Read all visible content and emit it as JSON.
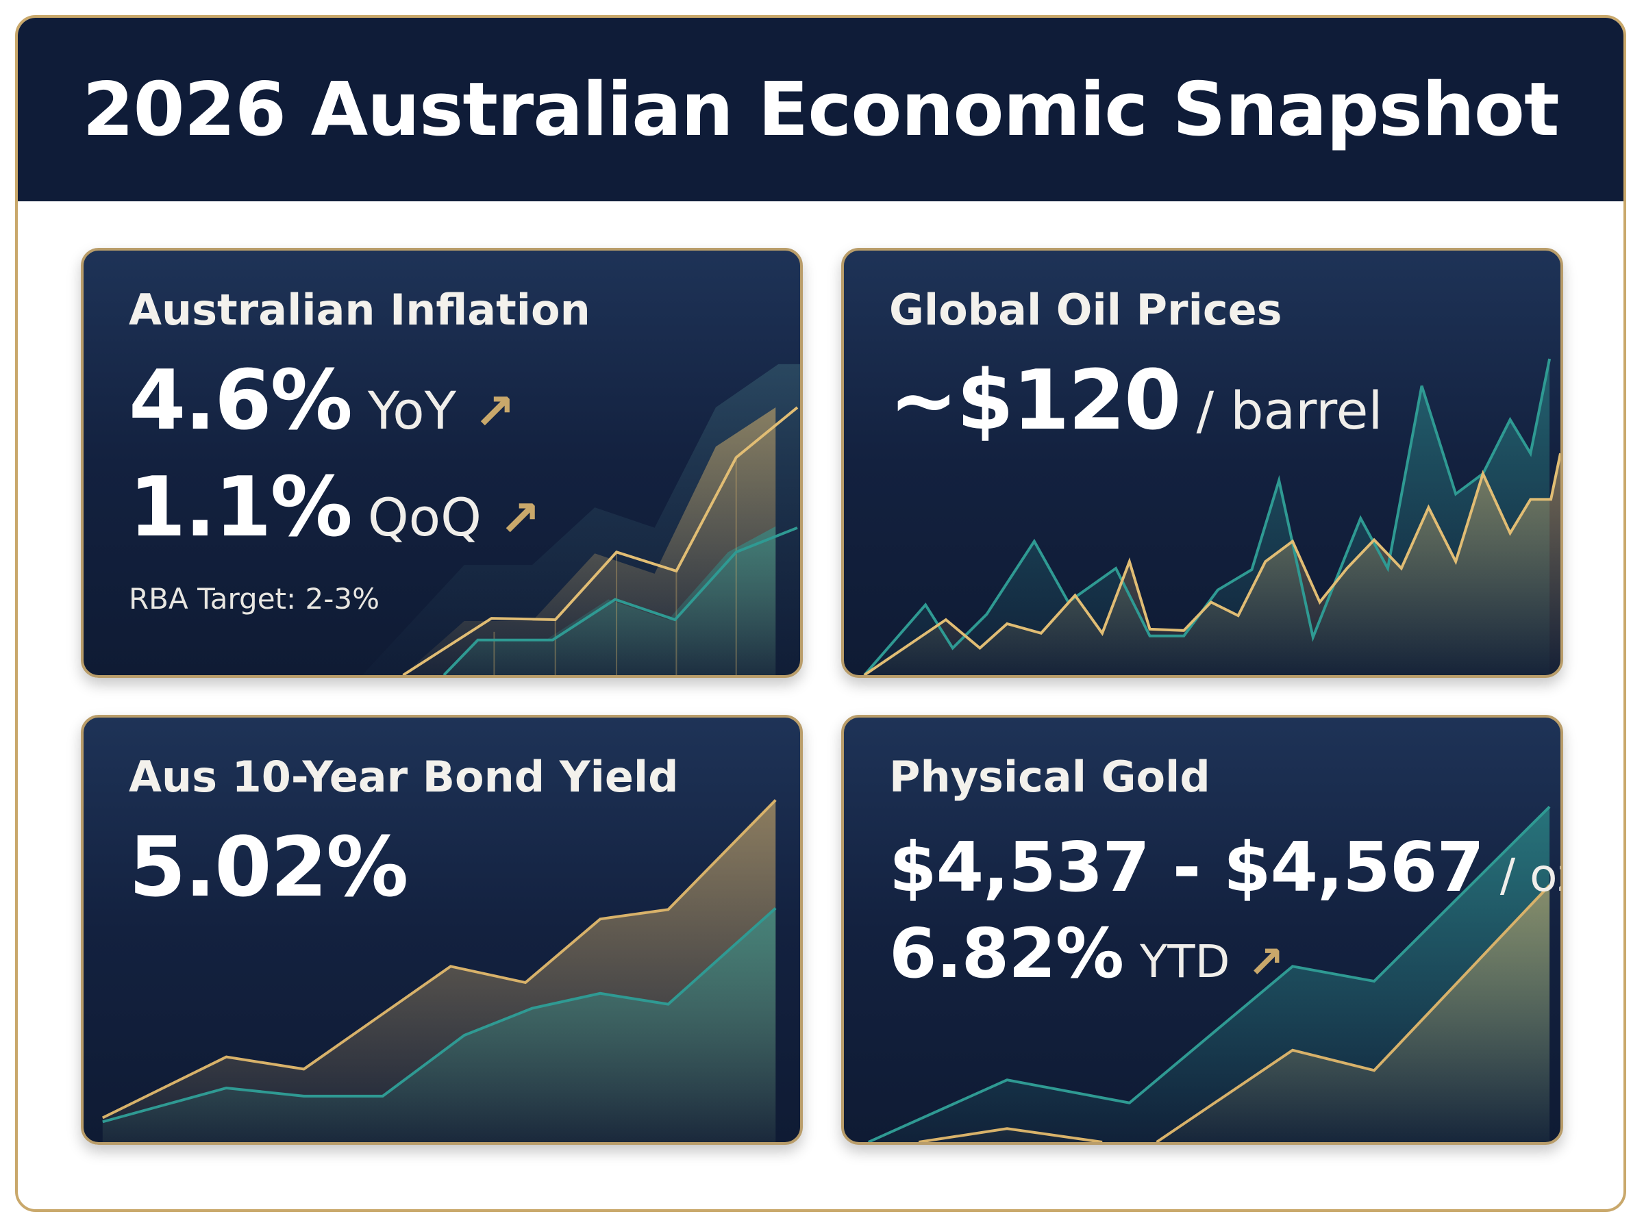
{
  "header": {
    "title": "2026 Australian Economic Snapshot"
  },
  "cards": {
    "inflation": {
      "title": "Australian Inflation",
      "yoy_value": "4.6%",
      "yoy_label": "YoY",
      "qoq_value": "1.1%",
      "qoq_label": "QoQ",
      "target": "RBA Target: 2-3%",
      "trend_icon": "arrow-up-right-icon"
    },
    "oil": {
      "title": "Global Oil Prices",
      "value": "~$120",
      "unit": "/ barrel"
    },
    "bond": {
      "title": "Aus 10-Year Bond Yield",
      "value": "5.02%"
    },
    "gold": {
      "title": "Physical Gold",
      "value": "$4,537 - $4,567",
      "unit": "/ oz",
      "ytd_value": "6.82%",
      "ytd_label": "YTD",
      "trend_icon": "arrow-up-right-icon"
    }
  },
  "colors": {
    "navy": "#0f1c38",
    "gold": "#d8b26a",
    "teal": "#2f9a93",
    "border": "#c9a86b"
  }
}
